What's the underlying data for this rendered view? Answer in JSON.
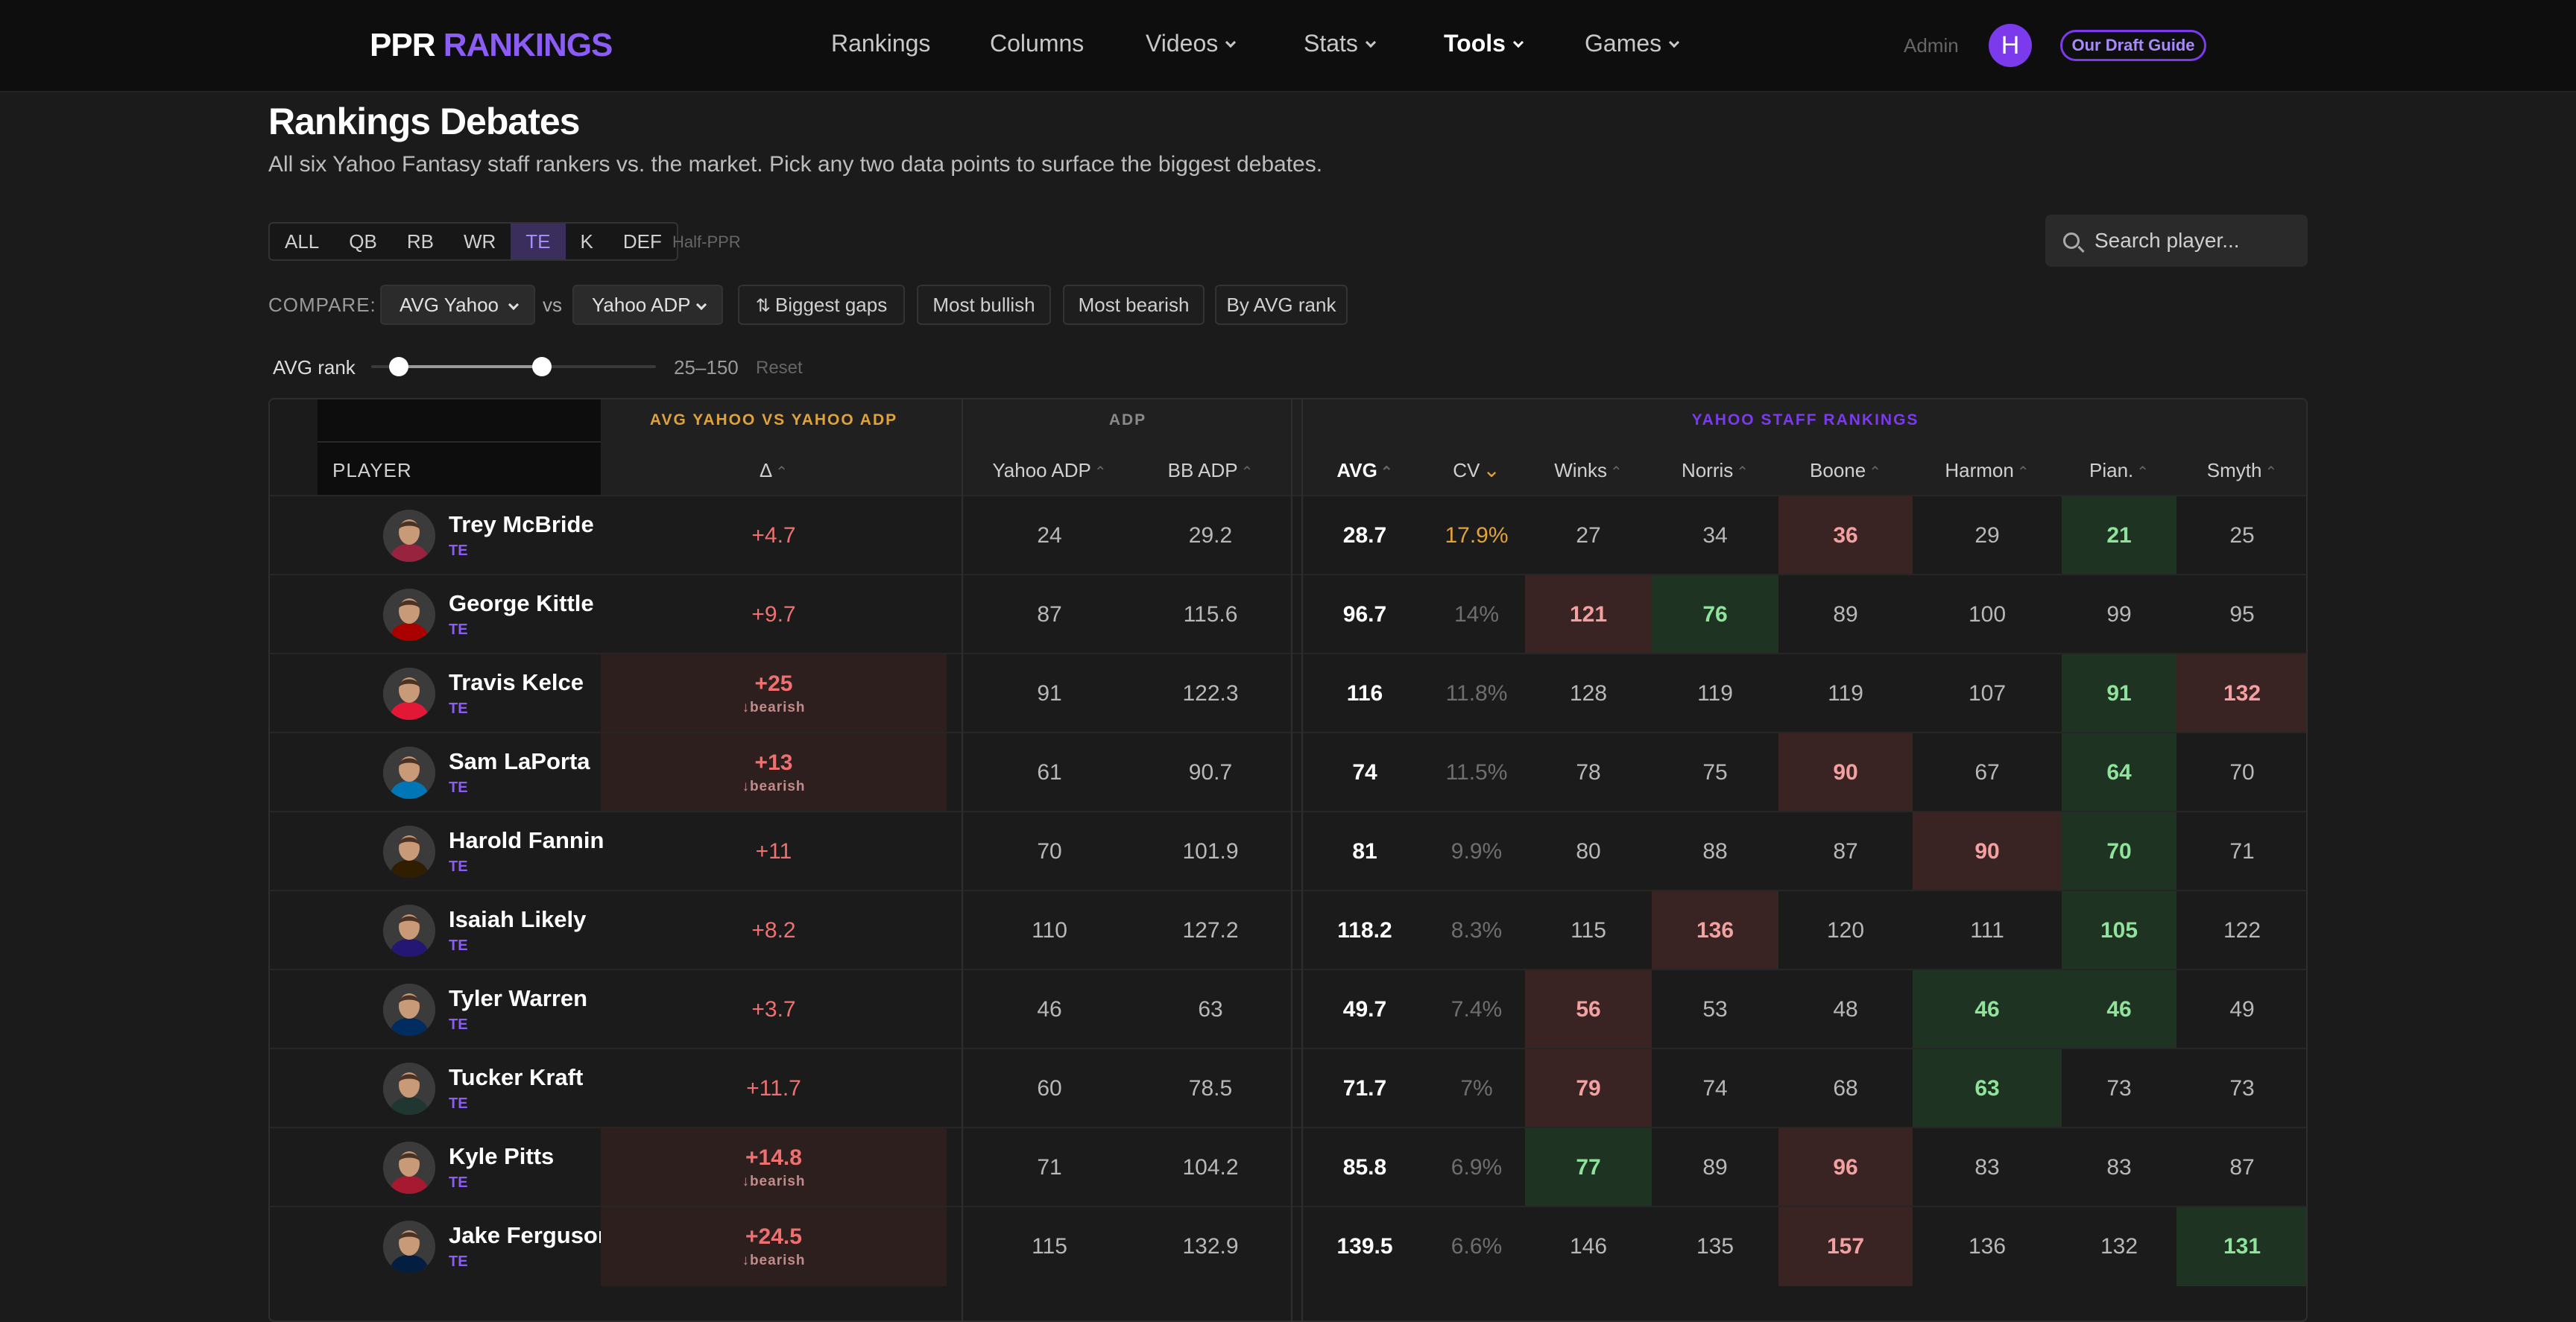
{
  "brand": {
    "part1": "PPR",
    "part2": "RANKINGS"
  },
  "nav": {
    "items": [
      {
        "label": "Rankings",
        "dropdown": false,
        "active": false
      },
      {
        "label": "Columns",
        "dropdown": false,
        "active": false
      },
      {
        "label": "Videos",
        "dropdown": true,
        "active": false
      },
      {
        "label": "Stats",
        "dropdown": true,
        "active": false
      },
      {
        "label": "Tools",
        "dropdown": true,
        "active": true
      },
      {
        "label": "Games",
        "dropdown": true,
        "active": false
      }
    ],
    "admin": "Admin",
    "avatar_letter": "H",
    "guide_button": "Our Draft Guide"
  },
  "page": {
    "title": "Rankings Debates",
    "subtitle": "All six Yahoo Fantasy staff rankers vs. the market. Pick any two data points to surface the biggest debates."
  },
  "filters": {
    "positions": [
      "ALL",
      "QB",
      "RB",
      "WR",
      "TE",
      "K",
      "DEF"
    ],
    "active_position": "TE",
    "format": "Half-PPR",
    "search_placeholder": "Search player..."
  },
  "compare": {
    "label": "COMPARE:",
    "left": "AVG Yahoo",
    "vs": "vs",
    "right": "Yahoo ADP",
    "buttons": [
      "Biggest gaps",
      "Most bullish",
      "Most bearish",
      "By AVG rank"
    ]
  },
  "range": {
    "label": "AVG rank",
    "text": "25–150",
    "reset": "Reset",
    "low": 25,
    "high": 150,
    "min": 1,
    "max": 250
  },
  "table": {
    "group_headers": {
      "compare": "AVG YAHOO VS YAHOO ADP",
      "adp": "ADP",
      "staff": "YAHOO STAFF RANKINGS"
    },
    "headers": {
      "player": "PLAYER",
      "delta": "Δ",
      "yahoo_adp": "Yahoo ADP",
      "bb_adp": "BB ADP",
      "avg": "AVG",
      "cv": "CV",
      "winks": "Winks",
      "norris": "Norris",
      "boone": "Boone",
      "harmon": "Harmon",
      "pian": "Pian.",
      "smyth": "Smyth"
    },
    "bearish_label": "↓bearish",
    "rows": [
      {
        "name": "Trey McBride",
        "pos": "TE",
        "delta": "+4.7",
        "bearish": false,
        "yahoo_adp": "24",
        "bb_adp": "29.2",
        "avg": "28.7",
        "cv": "17.9%",
        "cv_hi": true,
        "ranks": [
          "27",
          "34",
          "36",
          "29",
          "21",
          "25"
        ],
        "hl": [
          "",
          "",
          "bad",
          "",
          "good",
          ""
        ]
      },
      {
        "name": "George Kittle",
        "pos": "TE",
        "delta": "+9.7",
        "bearish": false,
        "yahoo_adp": "87",
        "bb_adp": "115.6",
        "avg": "96.7",
        "cv": "14%",
        "cv_hi": false,
        "ranks": [
          "121",
          "76",
          "89",
          "100",
          "99",
          "95"
        ],
        "hl": [
          "bad",
          "good",
          "",
          "",
          "",
          ""
        ]
      },
      {
        "name": "Travis Kelce",
        "pos": "TE",
        "delta": "+25",
        "bearish": true,
        "yahoo_adp": "91",
        "bb_adp": "122.3",
        "avg": "116",
        "cv": "11.8%",
        "cv_hi": false,
        "ranks": [
          "128",
          "119",
          "119",
          "107",
          "91",
          "132"
        ],
        "hl": [
          "",
          "",
          "",
          "",
          "good",
          "bad"
        ]
      },
      {
        "name": "Sam LaPorta",
        "pos": "TE",
        "delta": "+13",
        "bearish": true,
        "yahoo_adp": "61",
        "bb_adp": "90.7",
        "avg": "74",
        "cv": "11.5%",
        "cv_hi": false,
        "ranks": [
          "78",
          "75",
          "90",
          "67",
          "64",
          "70"
        ],
        "hl": [
          "",
          "",
          "bad",
          "",
          "good",
          ""
        ]
      },
      {
        "name": "Harold Fannin",
        "pos": "TE",
        "delta": "+11",
        "bearish": false,
        "yahoo_adp": "70",
        "bb_adp": "101.9",
        "avg": "81",
        "cv": "9.9%",
        "cv_hi": false,
        "ranks": [
          "80",
          "88",
          "87",
          "90",
          "70",
          "71"
        ],
        "hl": [
          "",
          "",
          "",
          "bad",
          "good",
          ""
        ]
      },
      {
        "name": "Isaiah Likely",
        "pos": "TE",
        "delta": "+8.2",
        "bearish": false,
        "yahoo_adp": "110",
        "bb_adp": "127.2",
        "avg": "118.2",
        "cv": "8.3%",
        "cv_hi": false,
        "ranks": [
          "115",
          "136",
          "120",
          "111",
          "105",
          "122"
        ],
        "hl": [
          "",
          "bad",
          "",
          "",
          "good",
          ""
        ]
      },
      {
        "name": "Tyler Warren",
        "pos": "TE",
        "delta": "+3.7",
        "bearish": false,
        "yahoo_adp": "46",
        "bb_adp": "63",
        "avg": "49.7",
        "cv": "7.4%",
        "cv_hi": false,
        "ranks": [
          "56",
          "53",
          "48",
          "46",
          "46",
          "49"
        ],
        "hl": [
          "bad",
          "",
          "",
          "good",
          "good",
          ""
        ]
      },
      {
        "name": "Tucker Kraft",
        "pos": "TE",
        "delta": "+11.7",
        "bearish": false,
        "yahoo_adp": "60",
        "bb_adp": "78.5",
        "avg": "71.7",
        "cv": "7%",
        "cv_hi": false,
        "ranks": [
          "79",
          "74",
          "68",
          "63",
          "73",
          "73"
        ],
        "hl": [
          "bad",
          "",
          "",
          "good",
          "",
          ""
        ]
      },
      {
        "name": "Kyle Pitts",
        "pos": "TE",
        "delta": "+14.8",
        "bearish": true,
        "yahoo_adp": "71",
        "bb_adp": "104.2",
        "avg": "85.8",
        "cv": "6.9%",
        "cv_hi": false,
        "ranks": [
          "77",
          "89",
          "96",
          "83",
          "83",
          "87"
        ],
        "hl": [
          "good",
          "",
          "bad",
          "",
          "",
          ""
        ]
      },
      {
        "name": "Jake Ferguson",
        "pos": "TE",
        "delta": "+24.5",
        "bearish": true,
        "yahoo_adp": "115",
        "bb_adp": "132.9",
        "avg": "139.5",
        "cv": "6.6%",
        "cv_hi": false,
        "ranks": [
          "146",
          "135",
          "157",
          "136",
          "132",
          "131"
        ],
        "hl": [
          "",
          "",
          "bad",
          "",
          "",
          "good"
        ]
      }
    ]
  },
  "colors": {
    "accent": "#8b5cf6",
    "compare_header": "#e0a23a",
    "bad_bg": "#3a2323",
    "bad_text": "#f2a0a0",
    "good_bg": "#1f3322",
    "good_text": "#8fe39a",
    "delta_text": "#f07070",
    "cv_highlight": "#e0a23a",
    "team_colors": [
      "#97233f",
      "#aa0000",
      "#e31837",
      "#0076b6",
      "#311d00",
      "#241773",
      "#002c5f",
      "#203731",
      "#a71930",
      "#041e42"
    ]
  }
}
